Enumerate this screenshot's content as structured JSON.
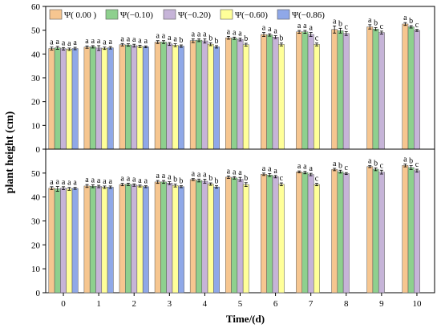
{
  "chart_data": [
    {
      "type": "bar",
      "panel": "top",
      "xlabel": "Time/(d)",
      "ylabel": "plant height (cm)",
      "ylim": [
        0,
        60
      ],
      "yticks": [
        "0",
        "10",
        "20",
        "30",
        "40",
        "50",
        "60"
      ],
      "categories": [
        "0",
        "1",
        "2",
        "3",
        "4",
        "5",
        "6",
        "7",
        "8",
        "9",
        "10"
      ],
      "legend_placement": "top-left",
      "grid": false,
      "colors": [
        "#f6c690",
        "#8ed08e",
        "#c6b4d8",
        "#ffff99",
        "#8fa8e8"
      ],
      "series": [
        {
          "name": "Ψ( 0.00 )",
          "values": [
            42.3,
            42.9,
            43.9,
            45.0,
            45.6,
            46.8,
            48.2,
            49.3,
            50.3,
            51.4,
            52.6
          ],
          "errors": [
            0.6,
            0.5,
            0.5,
            0.6,
            0.8,
            0.6,
            0.8,
            0.6,
            1.5,
            0.9,
            0.6
          ],
          "letters": [
            "a",
            "a",
            "a",
            "a",
            "a",
            "a",
            "a",
            "a",
            "a",
            "a",
            "a"
          ]
        },
        {
          "name": "Ψ(−0.10)",
          "values": [
            42.6,
            43.0,
            43.8,
            45.0,
            45.8,
            46.6,
            48.0,
            49.3,
            49.8,
            50.5,
            51.4
          ],
          "errors": [
            0.6,
            0.5,
            0.5,
            0.6,
            0.6,
            0.5,
            0.5,
            0.6,
            1.0,
            0.6,
            0.5
          ],
          "letters": [
            "a",
            "a",
            "a",
            "a",
            "a",
            "a",
            "a",
            "a",
            "b",
            "b",
            "b"
          ]
        },
        {
          "name": "Ψ(−0.20)",
          "values": [
            42.2,
            42.5,
            43.5,
            44.2,
            45.5,
            46.1,
            47.1,
            48.2,
            48.6,
            49.0,
            49.9
          ],
          "errors": [
            0.5,
            1.0,
            0.6,
            0.6,
            0.9,
            0.6,
            0.6,
            0.8,
            0.8,
            0.6,
            0.4
          ],
          "letters": [
            "a",
            "a",
            "a",
            "a",
            "a",
            "a",
            "a",
            "a",
            "c",
            "c",
            "c"
          ]
        },
        {
          "name": "Ψ(−0.60)",
          "values": [
            42.0,
            42.4,
            43.2,
            43.7,
            44.1,
            43.9,
            44.0,
            44.0,
            null,
            null,
            null
          ],
          "errors": [
            0.5,
            0.5,
            0.5,
            0.6,
            0.6,
            0.6,
            0.6,
            0.6,
            0,
            0,
            0
          ],
          "letters": [
            "a",
            "a",
            "a",
            "a",
            "b",
            "b",
            "b",
            "c",
            "",
            "",
            ""
          ]
        },
        {
          "name": "Ψ(−0.86)",
          "values": [
            42.3,
            42.6,
            43.0,
            43.3,
            43.0,
            null,
            null,
            null,
            null,
            null,
            null
          ],
          "errors": [
            0.5,
            0.5,
            0.4,
            0.5,
            0.5,
            0,
            0,
            0,
            0,
            0,
            0
          ],
          "letters": [
            "a",
            "a",
            "a",
            "b",
            "b",
            "",
            "",
            "",
            "",
            "",
            ""
          ]
        }
      ]
    },
    {
      "type": "bar",
      "panel": "bottom",
      "xlabel": "Time/(d)",
      "ylabel": "plant height (cm)",
      "ylim": [
        0,
        60
      ],
      "yticks": [
        "0",
        "10",
        "20",
        "30",
        "40",
        "50",
        ""
      ],
      "categories": [
        "0",
        "1",
        "2",
        "3",
        "4",
        "5",
        "6",
        "7",
        "8",
        "9",
        "10"
      ],
      "grid": false,
      "colors": [
        "#f6c690",
        "#8ed08e",
        "#c6b4d8",
        "#ffff99",
        "#8fa8e8"
      ],
      "series": [
        {
          "name": "Ψ( 0.00 )",
          "values": [
            43.7,
            44.6,
            45.2,
            46.3,
            47.3,
            48.3,
            49.5,
            50.5,
            51.5,
            52.7,
            53.2
          ],
          "errors": [
            0.6,
            0.6,
            0.5,
            0.6,
            0.4,
            0.5,
            0.5,
            0.4,
            0.5,
            0.4,
            0.6
          ],
          "letters": [
            "a",
            "a",
            "a",
            "a",
            "a",
            "a",
            "a",
            "a",
            "a",
            "a",
            "a"
          ]
        },
        {
          "name": "Ψ(−0.10)",
          "values": [
            43.4,
            44.5,
            45.3,
            46.3,
            46.9,
            48.0,
            49.2,
            50.2,
            50.6,
            51.6,
            52.3
          ],
          "errors": [
            1.0,
            0.6,
            0.5,
            0.6,
            0.6,
            0.5,
            0.6,
            0.5,
            0.6,
            0.6,
            0.8
          ],
          "letters": [
            "a",
            "a",
            "a",
            "a",
            "a",
            "a",
            "a",
            "a",
            "b",
            "b",
            "b"
          ]
        },
        {
          "name": "Ψ(−0.20)",
          "values": [
            43.7,
            44.4,
            45.0,
            45.8,
            46.6,
            47.4,
            48.5,
            49.4,
            49.8,
            50.4,
            51.0
          ],
          "errors": [
            0.6,
            0.5,
            0.5,
            0.6,
            0.8,
            0.8,
            0.5,
            0.5,
            0.4,
            0.8,
            0.6
          ],
          "letters": [
            "a",
            "a",
            "a",
            "a",
            "a",
            "a",
            "a",
            "a",
            "c",
            "c",
            "c"
          ]
        },
        {
          "name": "Ψ(−0.60)",
          "values": [
            43.4,
            44.1,
            44.6,
            44.8,
            45.4,
            45.2,
            45.3,
            45.2,
            null,
            null,
            null
          ],
          "errors": [
            0.6,
            0.5,
            0.4,
            0.6,
            0.5,
            0.8,
            0.6,
            0.5,
            0,
            0,
            0
          ],
          "letters": [
            "a",
            "a",
            "a",
            "b",
            "b",
            "b",
            "c",
            "c",
            "",
            "",
            ""
          ]
        },
        {
          "name": "Ψ(−0.86)",
          "values": [
            43.6,
            44.1,
            44.3,
            44.3,
            44.2,
            null,
            null,
            null,
            null,
            null,
            null
          ],
          "errors": [
            0.4,
            0.5,
            0.4,
            0.4,
            0.5,
            0,
            0,
            0,
            0,
            0,
            0
          ],
          "letters": [
            "a",
            "a",
            "a",
            "b",
            "b",
            "",
            "",
            "",
            "",
            "",
            ""
          ]
        }
      ]
    }
  ]
}
